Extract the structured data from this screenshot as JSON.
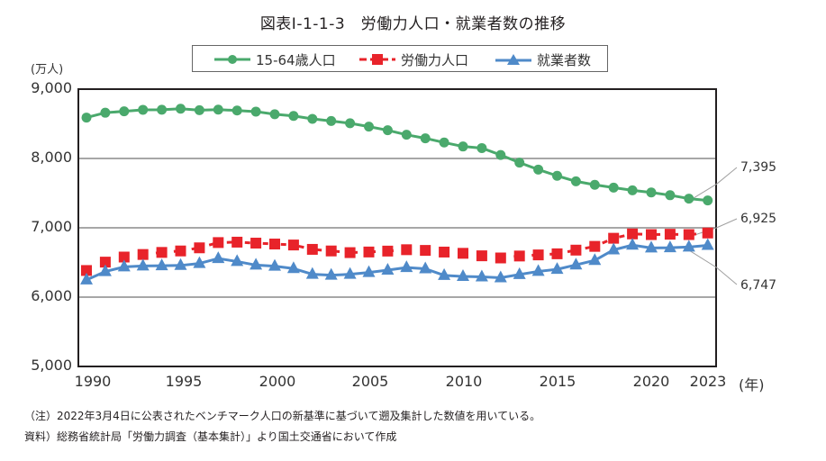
{
  "chart_data": {
    "type": "line",
    "title": "図表Ⅰ-1-1-3　労働力人口・就業者数の推移",
    "xlabel": "(年)",
    "ylabel": "(万人)",
    "ylim": [
      5000,
      9000
    ],
    "yticks": [
      "9,000",
      "8,000",
      "7,000",
      "6,000",
      "5,000"
    ],
    "ytick_values": [
      9000,
      8000,
      7000,
      6000,
      5000
    ],
    "xticks": [
      "1990",
      "1995",
      "2000",
      "2005",
      "2010",
      "2015",
      "2020",
      "2023"
    ],
    "xtick_values": [
      1990,
      1995,
      2000,
      2005,
      2010,
      2015,
      2020,
      2023
    ],
    "grid": "horizontal",
    "legend_position": "top-center",
    "x": [
      1990,
      1991,
      1992,
      1993,
      1994,
      1995,
      1996,
      1997,
      1998,
      1999,
      2000,
      2001,
      2002,
      2003,
      2004,
      2005,
      2006,
      2007,
      2008,
      2009,
      2010,
      2011,
      2012,
      2013,
      2014,
      2015,
      2016,
      2017,
      2018,
      2019,
      2020,
      2021,
      2022,
      2023
    ],
    "series": [
      {
        "name": "15-64歳人口",
        "color": "#4aa96c",
        "marker": "circle",
        "values": [
          8590,
          8660,
          8680,
          8702,
          8703,
          8717,
          8697,
          8704,
          8692,
          8676,
          8638,
          8614,
          8571,
          8540,
          8508,
          8459,
          8407,
          8342,
          8291,
          8230,
          8173,
          8150,
          8050,
          7940,
          7840,
          7750,
          7670,
          7620,
          7580,
          7540,
          7510,
          7470,
          7421,
          7395
        ],
        "end_label": "7,395"
      },
      {
        "name": "労働力人口",
        "color": "#e8232a",
        "marker": "square",
        "values": [
          6384,
          6505,
          6578,
          6615,
          6645,
          6666,
          6711,
          6787,
          6793,
          6779,
          6766,
          6752,
          6689,
          6666,
          6642,
          6651,
          6664,
          6684,
          6674,
          6650,
          6632,
          6596,
          6565,
          6593,
          6609,
          6625,
          6678,
          6732,
          6849,
          6912,
          6902,
          6907,
          6902,
          6925
        ],
        "end_label": "6,925"
      },
      {
        "name": "就業者数",
        "color": "#4f8ac9",
        "marker": "triangle",
        "values": [
          6249,
          6369,
          6436,
          6450,
          6453,
          6457,
          6486,
          6557,
          6514,
          6462,
          6446,
          6412,
          6330,
          6316,
          6329,
          6356,
          6389,
          6427,
          6409,
          6314,
          6298,
          6293,
          6280,
          6326,
          6371,
          6401,
          6465,
          6530,
          6682,
          6750,
          6710,
          6713,
          6723,
          6747
        ],
        "end_label": "6,747"
      }
    ]
  },
  "notes": {
    "note": "（注）2022年3月4日に公表されたベンチマーク人口の新基準に基づいて遡及集計した数値を用いている。",
    "source": "資料）総務省統計局「労働力調査（基本集計）」より国土交通省において作成"
  }
}
